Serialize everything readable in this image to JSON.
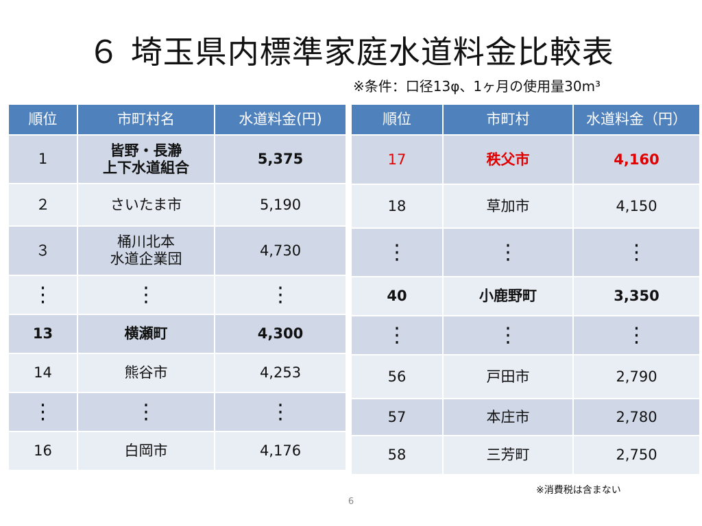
{
  "title": "６ 埼玉県内標準家庭水道料金比較表",
  "condition": "※条件：口径13φ、1ヶ月の使用量30m³",
  "left_table": {
    "headers": [
      "順位",
      "市町村名",
      "水道料金(円)"
    ],
    "rows": [
      {
        "rank": "1",
        "name_line1": "皆野・長瀞",
        "name_line2": "上下水道組合",
        "price": "5,375"
      },
      {
        "rank": "２",
        "name_line1": "さいたま市",
        "name_line2": "",
        "price": "5,190"
      },
      {
        "rank": "３",
        "name_line1": "桶川北本",
        "name_line2": "水道企業団",
        "price": "4,730"
      },
      {
        "rank": "⋮",
        "name_line1": "⋮",
        "name_line2": "",
        "price": "⋮"
      },
      {
        "rank": "13",
        "name_line1": "横瀬町",
        "name_line2": "",
        "price": "4,300"
      },
      {
        "rank": "14",
        "name_line1": "熊谷市",
        "name_line2": "",
        "price": "4,253"
      },
      {
        "rank": "⋮",
        "name_line1": "⋮",
        "name_line2": "",
        "price": "⋮"
      },
      {
        "rank": "16",
        "name_line1": "白岡市",
        "name_line2": "",
        "price": "4,176"
      }
    ]
  },
  "right_table": {
    "headers": [
      "順位",
      "市町村",
      "水道料金（円）"
    ],
    "rows": [
      {
        "rank": "17",
        "name": "秩父市",
        "price": "4,160"
      },
      {
        "rank": "18",
        "name": "草加市",
        "price": "4,150"
      },
      {
        "rank": "⋮",
        "name": "⋮",
        "price": "⋮"
      },
      {
        "rank": "40",
        "name": "小鹿野町",
        "price": "3,350"
      },
      {
        "rank": "⋮",
        "name": "⋮",
        "price": "⋮"
      },
      {
        "rank": "56",
        "name": "戸田市",
        "price": "2,790"
      },
      {
        "rank": "57",
        "name": "本庄市",
        "price": "2,780"
      },
      {
        "rank": "58",
        "name": "三芳町",
        "price": "2,750"
      }
    ]
  },
  "note": "※消費税は含まない",
  "page_number": "6",
  "colors": {
    "header_bg": "#4f81bd",
    "row_dark": "#d0d8e8",
    "row_light": "#e9edf4",
    "highlight_red": "#e00000"
  }
}
